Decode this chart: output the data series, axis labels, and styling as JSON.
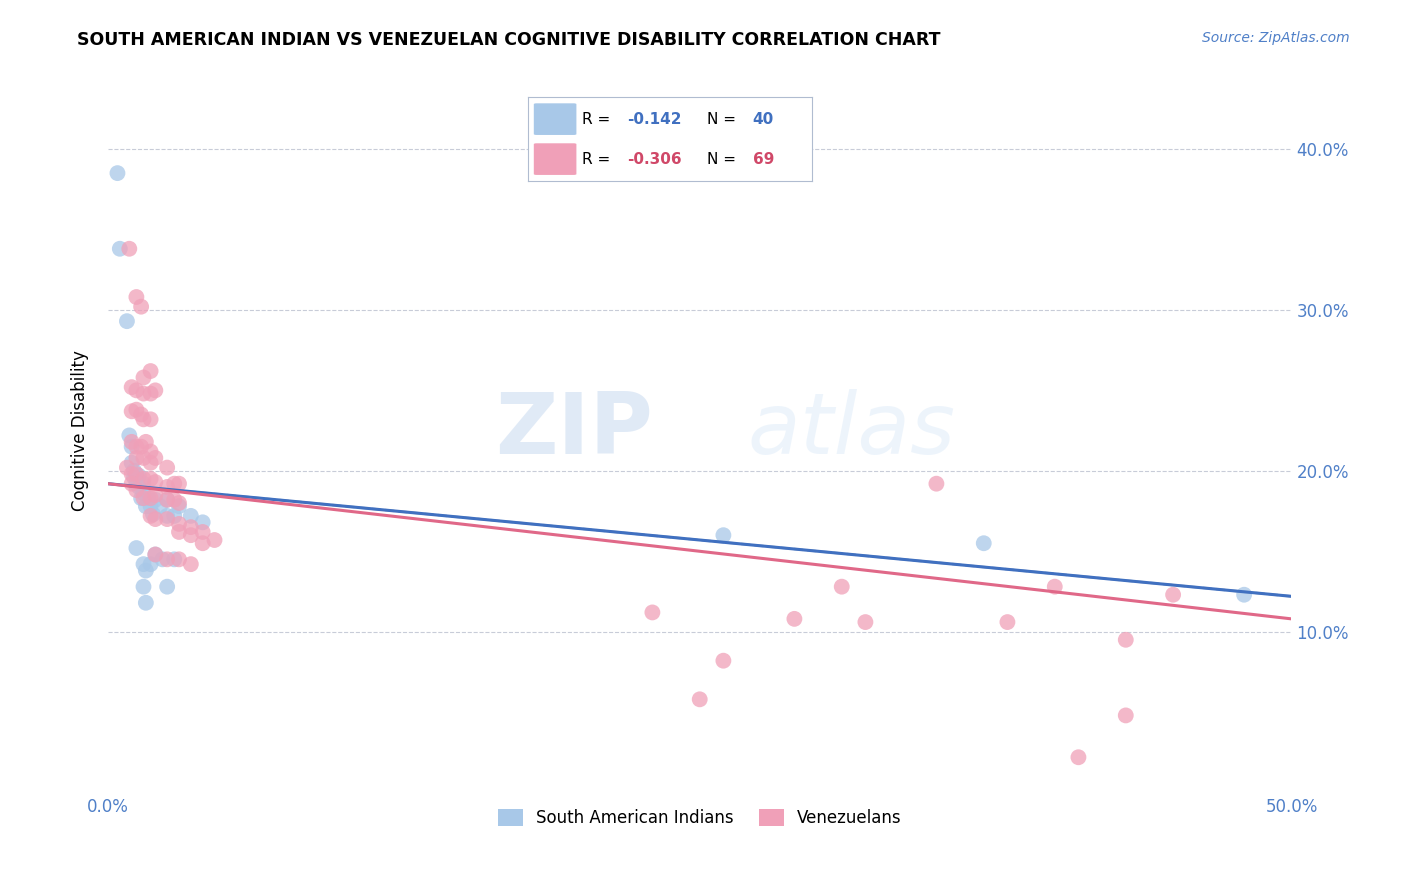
{
  "title": "SOUTH AMERICAN INDIAN VS VENEZUELAN COGNITIVE DISABILITY CORRELATION CHART",
  "source": "Source: ZipAtlas.com",
  "ylabel": "Cognitive Disability",
  "xlim": [
    0.0,
    0.5
  ],
  "ylim": [
    0.0,
    0.45
  ],
  "watermark_zip": "ZIP",
  "watermark_atlas": "atlas",
  "blue_color": "#a8c8e8",
  "pink_color": "#f0a0b8",
  "blue_line_color": "#4070c0",
  "pink_line_color": "#e06888",
  "dashed_line_color": "#b0bcd0",
  "blue_line": [
    0.0,
    0.192,
    0.5,
    0.122
  ],
  "pink_line": [
    0.0,
    0.192,
    0.5,
    0.108
  ],
  "blue_scatter": [
    [
      0.004,
      0.385
    ],
    [
      0.005,
      0.338
    ],
    [
      0.008,
      0.293
    ],
    [
      0.009,
      0.222
    ],
    [
      0.01,
      0.215
    ],
    [
      0.01,
      0.205
    ],
    [
      0.011,
      0.2
    ],
    [
      0.011,
      0.196
    ],
    [
      0.012,
      0.192
    ],
    [
      0.012,
      0.197
    ],
    [
      0.013,
      0.19
    ],
    [
      0.013,
      0.197
    ],
    [
      0.014,
      0.183
    ],
    [
      0.015,
      0.192
    ],
    [
      0.015,
      0.186
    ],
    [
      0.016,
      0.178
    ],
    [
      0.017,
      0.183
    ],
    [
      0.018,
      0.178
    ],
    [
      0.019,
      0.173
    ],
    [
      0.02,
      0.182
    ],
    [
      0.022,
      0.178
    ],
    [
      0.025,
      0.182
    ],
    [
      0.025,
      0.172
    ],
    [
      0.028,
      0.172
    ],
    [
      0.03,
      0.178
    ],
    [
      0.035,
      0.172
    ],
    [
      0.04,
      0.168
    ],
    [
      0.012,
      0.152
    ],
    [
      0.015,
      0.142
    ],
    [
      0.016,
      0.138
    ],
    [
      0.018,
      0.142
    ],
    [
      0.02,
      0.148
    ],
    [
      0.023,
      0.145
    ],
    [
      0.028,
      0.145
    ],
    [
      0.015,
      0.128
    ],
    [
      0.016,
      0.118
    ],
    [
      0.025,
      0.128
    ],
    [
      0.26,
      0.16
    ],
    [
      0.37,
      0.155
    ],
    [
      0.48,
      0.123
    ]
  ],
  "pink_scatter": [
    [
      0.009,
      0.338
    ],
    [
      0.012,
      0.308
    ],
    [
      0.014,
      0.302
    ],
    [
      0.015,
      0.258
    ],
    [
      0.018,
      0.262
    ],
    [
      0.01,
      0.252
    ],
    [
      0.012,
      0.25
    ],
    [
      0.015,
      0.248
    ],
    [
      0.018,
      0.248
    ],
    [
      0.02,
      0.25
    ],
    [
      0.01,
      0.237
    ],
    [
      0.012,
      0.238
    ],
    [
      0.014,
      0.235
    ],
    [
      0.015,
      0.232
    ],
    [
      0.018,
      0.232
    ],
    [
      0.01,
      0.218
    ],
    [
      0.012,
      0.215
    ],
    [
      0.014,
      0.215
    ],
    [
      0.016,
      0.218
    ],
    [
      0.018,
      0.212
    ],
    [
      0.012,
      0.208
    ],
    [
      0.015,
      0.208
    ],
    [
      0.018,
      0.205
    ],
    [
      0.02,
      0.208
    ],
    [
      0.025,
      0.202
    ],
    [
      0.008,
      0.202
    ],
    [
      0.01,
      0.198
    ],
    [
      0.012,
      0.198
    ],
    [
      0.015,
      0.195
    ],
    [
      0.018,
      0.195
    ],
    [
      0.02,
      0.193
    ],
    [
      0.025,
      0.19
    ],
    [
      0.028,
      0.192
    ],
    [
      0.03,
      0.192
    ],
    [
      0.01,
      0.192
    ],
    [
      0.012,
      0.188
    ],
    [
      0.015,
      0.183
    ],
    [
      0.018,
      0.183
    ],
    [
      0.02,
      0.185
    ],
    [
      0.025,
      0.182
    ],
    [
      0.028,
      0.182
    ],
    [
      0.03,
      0.18
    ],
    [
      0.018,
      0.172
    ],
    [
      0.02,
      0.17
    ],
    [
      0.025,
      0.17
    ],
    [
      0.03,
      0.167
    ],
    [
      0.03,
      0.162
    ],
    [
      0.035,
      0.165
    ],
    [
      0.035,
      0.16
    ],
    [
      0.04,
      0.162
    ],
    [
      0.04,
      0.155
    ],
    [
      0.045,
      0.157
    ],
    [
      0.02,
      0.148
    ],
    [
      0.025,
      0.145
    ],
    [
      0.03,
      0.145
    ],
    [
      0.035,
      0.142
    ],
    [
      0.29,
      0.108
    ],
    [
      0.32,
      0.106
    ],
    [
      0.38,
      0.106
    ],
    [
      0.31,
      0.128
    ],
    [
      0.4,
      0.128
    ],
    [
      0.45,
      0.123
    ],
    [
      0.26,
      0.082
    ],
    [
      0.43,
      0.095
    ],
    [
      0.23,
      0.112
    ],
    [
      0.25,
      0.058
    ],
    [
      0.43,
      0.048
    ],
    [
      0.41,
      0.022
    ],
    [
      0.35,
      0.192
    ]
  ]
}
